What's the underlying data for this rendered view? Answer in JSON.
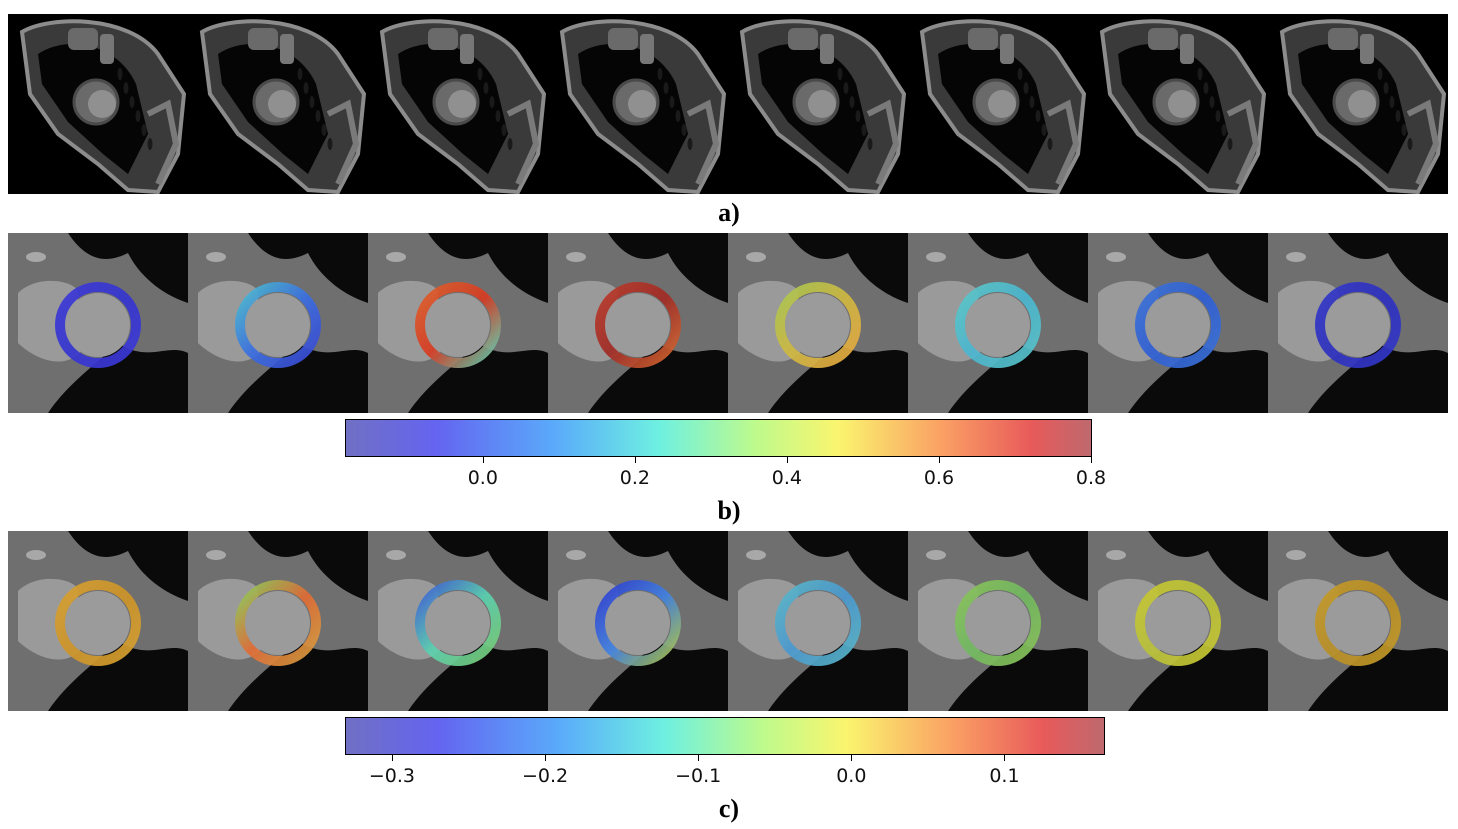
{
  "rows": [
    {
      "id": "a",
      "label": "a)",
      "kind": "ct",
      "count": 8
    },
    {
      "id": "b",
      "label": "b)",
      "kind": "overlay",
      "ring_colors": [
        [
          "#3c38d8",
          "#3535cf",
          "#3c38d8"
        ],
        [
          "#4ac0d0",
          "#3a6ee0",
          "#3a47d4"
        ],
        [
          "#e0602a",
          "#d63a22",
          "#5fd7b8"
        ],
        [
          "#bc3a2a",
          "#a02a24",
          "#d66a32"
        ],
        [
          "#a8c850",
          "#cfb840",
          "#e8a840"
        ],
        [
          "#5ac8c8",
          "#4ab6d0",
          "#58c4c8"
        ],
        [
          "#3a72d8",
          "#2f5ed4",
          "#3a72d8"
        ],
        [
          "#3337c8",
          "#2d30be",
          "#3337c8"
        ]
      ],
      "colorbar": {
        "min": -0.18,
        "max": 0.8,
        "ticks": [
          0.0,
          0.2,
          0.4,
          0.6,
          0.8
        ],
        "tick_labels": [
          "0.0",
          "0.2",
          "0.4",
          "0.6",
          "0.8"
        ]
      }
    },
    {
      "id": "c",
      "label": "c)",
      "kind": "overlay",
      "ring_colors": [
        [
          "#d8a030",
          "#cd9428",
          "#d8a030"
        ],
        [
          "#8ad05a",
          "#e06a34",
          "#d8a040"
        ],
        [
          "#3a5ad8",
          "#5ad0b0",
          "#7acc70"
        ],
        [
          "#2c3ad0",
          "#4080e0",
          "#b0c848"
        ],
        [
          "#58b8c8",
          "#4a98d0",
          "#58b8c8"
        ],
        [
          "#8ac458",
          "#70b860",
          "#8ac458"
        ],
        [
          "#c8c830",
          "#b8c038",
          "#c8c830"
        ],
        [
          "#c49a28",
          "#b88e24",
          "#c49a28"
        ]
      ],
      "colorbar": {
        "min": -0.33,
        "max": 0.165,
        "ticks": [
          -0.3,
          -0.2,
          -0.1,
          0.0,
          0.1
        ],
        "tick_labels": [
          "−0.3",
          "−0.2",
          "−0.1",
          "0.0",
          "0.1"
        ]
      }
    }
  ]
}
